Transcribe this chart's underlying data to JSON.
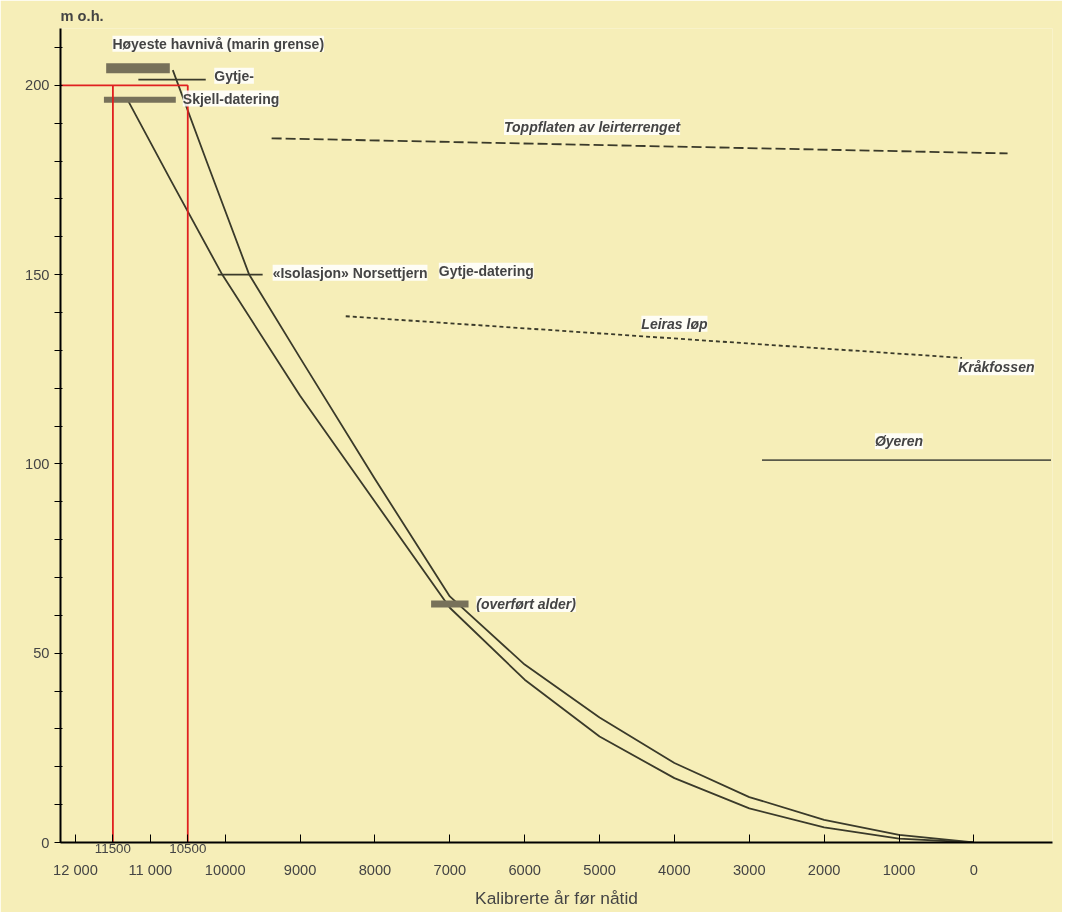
{
  "chart_data": {
    "type": "line",
    "xlabel": "Kalibrerte år før nåtid",
    "ylabel": "m o.h.",
    "xlim": [
      12200,
      -1050
    ],
    "ylim": [
      0,
      215
    ],
    "xticks": [
      {
        "value": 12000,
        "label": "12 000"
      },
      {
        "value": 11000,
        "label": "11 000"
      },
      10000,
      9000,
      8000,
      7000,
      6000,
      5000,
      4000,
      3000,
      2000,
      1000,
      0
    ],
    "yticks": [
      0,
      {
        "value": 10,
        "label": null
      },
      {
        "value": 20,
        "label": null
      },
      {
        "value": 30,
        "label": null
      },
      {
        "value": 40,
        "label": null
      },
      50,
      {
        "value": 60,
        "label": null
      },
      {
        "value": 70,
        "label": null
      },
      {
        "value": 80,
        "label": null
      },
      {
        "value": 90,
        "label": null
      },
      100,
      {
        "value": 110,
        "label": null
      },
      {
        "value": 120,
        "label": null
      },
      {
        "value": 130,
        "label": null
      },
      {
        "value": 140,
        "label": null
      },
      150,
      {
        "value": 160,
        "label": null
      },
      {
        "value": 170,
        "label": null
      },
      {
        "value": 180,
        "label": null
      },
      {
        "value": 190,
        "label": null
      },
      200,
      {
        "value": 210,
        "label": null
      }
    ],
    "grid": false,
    "marker": "none",
    "series": [
      {
        "color": "#3a3a2a",
        "x": [
          11300,
          10730,
          10040,
          9000,
          8000,
          7000,
          6000,
          5000,
          4000,
          3000,
          2000,
          1000,
          0
        ],
        "values": [
          196,
          175,
          150,
          118,
          90,
          62,
          43,
          28,
          17,
          9,
          4,
          1,
          0
        ]
      },
      {
        "color": "#3a3a2a",
        "x": [
          10700,
          10250,
          9680,
          9000,
          8000,
          7000,
          6000,
          5000,
          4000,
          3000,
          2000,
          1000,
          0
        ],
        "values": [
          204,
          180,
          150,
          128,
          96,
          65,
          47,
          33,
          21,
          12,
          6,
          2,
          0
        ]
      },
      {
        "color": "#77715a",
        "x": [
          11590,
          10740
        ],
        "values": [
          204.5,
          204.5
        ]
      },
      {
        "color": "#3a3a2a",
        "x": [
          11160,
          10260
        ],
        "values": [
          201.5,
          201.5
        ]
      },
      {
        "color": "#77715a",
        "x": [
          11620,
          10660
        ],
        "values": [
          196.2,
          196.2
        ]
      },
      {
        "color": "#3a3a2a",
        "x": [
          10100,
          9500
        ],
        "values": [
          150,
          150
        ]
      },
      {
        "color": "#77715a",
        "x": [
          7250,
          6750
        ],
        "values": [
          63,
          63
        ]
      },
      {
        "color": "#3a3a2a",
        "line_style": "dashed",
        "x": [
          9380,
          -450
        ],
        "values": [
          186,
          182
        ]
      },
      {
        "color": "#3a3a2a",
        "line_style": "dotted",
        "x": [
          8390,
          160
        ],
        "values": [
          139,
          128
        ]
      },
      {
        "color": "#5a5a4a",
        "x": [
          2830,
          -1030
        ],
        "values": [
          101,
          101
        ]
      },
      {
        "color": "#e02020",
        "x": [
          11500,
          11500
        ],
        "values": [
          0,
          200
        ]
      },
      {
        "color": "#e02020",
        "x": [
          10500,
          10500
        ],
        "values": [
          0,
          200
        ]
      },
      {
        "color": "#e02020",
        "x": [
          12200,
          10500
        ],
        "values": [
          200,
          200
        ]
      }
    ],
    "annotations": [
      "Høyeste havnivå (marin grense)",
      "Gytje-",
      "Skjell-datering",
      "«Isolasjon» Norsettjern",
      "Gytje-datering",
      "Toppflaten av leirterrenget",
      "Leiras løp",
      "Kråkfossen",
      "Øyeren",
      "(overført alder)",
      {
        "text": "11500",
        "x": 11500,
        "y": 0
      },
      {
        "text": "10500",
        "x": 10500,
        "y": 0
      }
    ]
  }
}
